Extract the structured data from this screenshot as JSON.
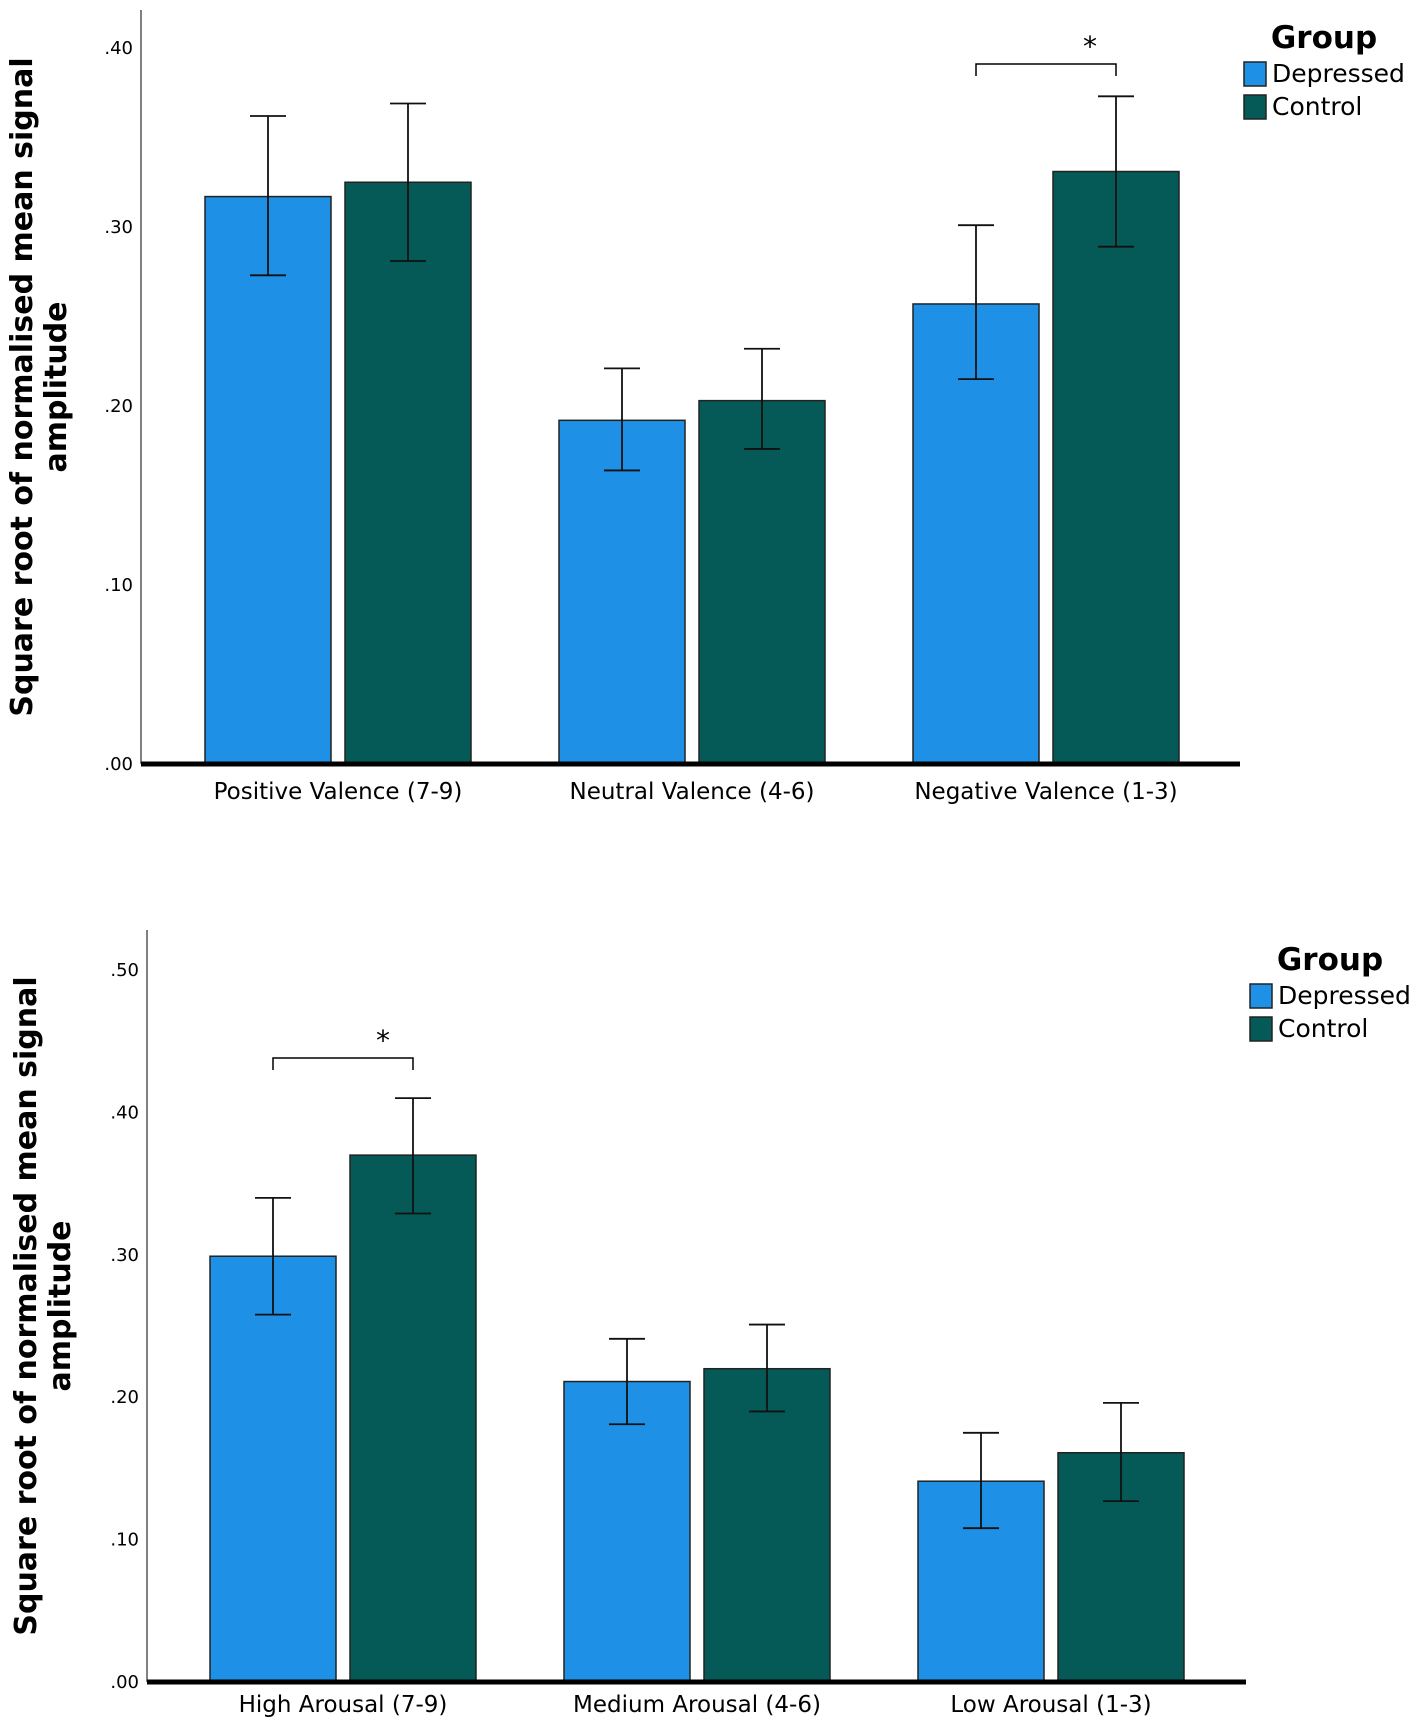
{
  "colors": {
    "depressed": "#1E90E6",
    "control": "#055A57",
    "axis": "#000000"
  },
  "legend": {
    "title": "Group",
    "items": [
      "Depressed",
      "Control"
    ]
  },
  "chart_data": [
    {
      "type": "bar",
      "title": "",
      "xlabel": "",
      "ylabel_line1": "Square root of normalised mean signal",
      "ylabel_line2": "amplitude",
      "ylim": [
        0,
        0.4
      ],
      "yticks": [
        ".00",
        ".10",
        ".20",
        ".30",
        ".40"
      ],
      "categories": [
        "Positive Valence (7-9)",
        "Neutral Valence (4-6)",
        "Negative Valence (1-3)"
      ],
      "series": [
        {
          "name": "Depressed",
          "values": [
            0.317,
            0.192,
            0.257
          ],
          "err_low": [
            0.273,
            0.164,
            0.215
          ],
          "err_high": [
            0.362,
            0.221,
            0.301
          ]
        },
        {
          "name": "Control",
          "values": [
            0.325,
            0.203,
            0.331
          ],
          "err_low": [
            0.281,
            0.176,
            0.289
          ],
          "err_high": [
            0.369,
            0.232,
            0.373
          ]
        }
      ],
      "significance": {
        "category_index": 2,
        "marker": "*"
      }
    },
    {
      "type": "bar",
      "title": "",
      "xlabel": "",
      "ylabel_line1": "Square root of normalised mean signal",
      "ylabel_line2": "amplitude",
      "ylim": [
        0,
        0.5
      ],
      "yticks": [
        ".00",
        ".10",
        ".20",
        ".30",
        ".40",
        ".50"
      ],
      "categories": [
        "High Arousal (7-9)",
        "Medium Arousal (4-6)",
        "Low Arousal (1-3)"
      ],
      "series": [
        {
          "name": "Depressed",
          "values": [
            0.299,
            0.211,
            0.141
          ],
          "err_low": [
            0.258,
            0.181,
            0.108
          ],
          "err_high": [
            0.34,
            0.241,
            0.175
          ]
        },
        {
          "name": "Control",
          "values": [
            0.37,
            0.22,
            0.161
          ],
          "err_low": [
            0.329,
            0.19,
            0.127
          ],
          "err_high": [
            0.41,
            0.251,
            0.196
          ]
        }
      ],
      "significance": {
        "category_index": 0,
        "marker": "*"
      }
    }
  ]
}
